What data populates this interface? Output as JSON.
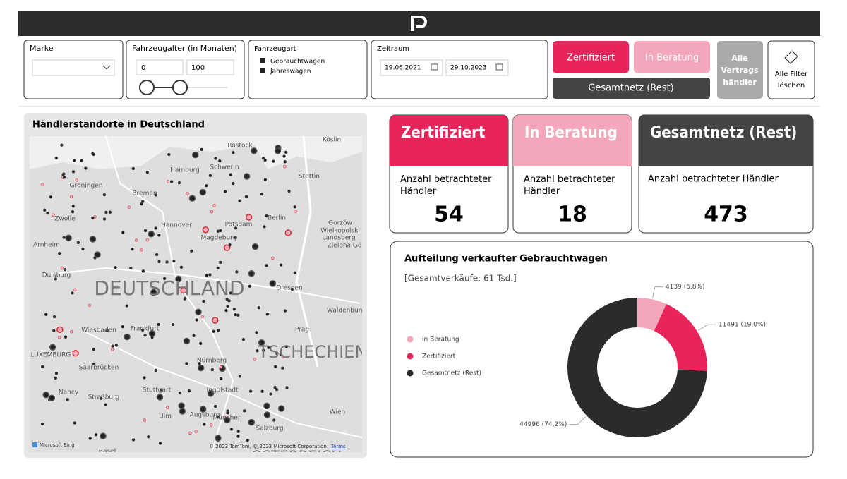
{
  "header": {
    "logo": "P"
  },
  "filters": {
    "brand": {
      "label": "Marke"
    },
    "age": {
      "label": "Fahrzeugalter (in Monaten)",
      "min": "0",
      "max": "100"
    },
    "type": {
      "label": "Fahrzeugart",
      "items": [
        "Gebrauchtwagen",
        "Jahreswagen"
      ]
    },
    "period": {
      "label": "Zeitraum",
      "from": "19.06.2021",
      "to": "29.10.2023"
    }
  },
  "buttons": {
    "certified": "Zertifiziert",
    "consulting": "In Beratung",
    "rest": "Gesamtnetz (Rest)",
    "all_dealers": [
      "Alle",
      "Vertrags",
      "händler"
    ],
    "clear": [
      "Alle Filter",
      "löschen"
    ]
  },
  "map": {
    "title": "Händlerstandorte in Deutschland",
    "places": [
      "Rostock",
      "Köslin",
      "Hamburg",
      "Schwerin",
      "Stettin",
      "Groningen",
      "Bremen",
      "Zwolle",
      "Hannover",
      "Magdeburg",
      "Berlin",
      "Potsdam",
      "Gorzów",
      "Wielkopolski",
      "Landsberg",
      "Zielona Gó",
      "Arnheim",
      "Duisburg",
      "Dresden",
      "Waldenburg",
      "Wiesbaden",
      "Frankfurt",
      "Prag",
      "LUXEMBURG",
      "Saarbrücken",
      "Nürnberg",
      "Nancy",
      "Stuttgart",
      "Ingolstadt",
      "Straßburg",
      "Augsburg",
      "Ulm",
      "München",
      "Wien",
      "Salzburg",
      "Basel"
    ],
    "countries": [
      "DEUTSCHLAND",
      "TSCHECHIEN",
      "ÖSTERREICH"
    ],
    "provider": "Microsoft Bing",
    "copyright": "© 2023 TomTom, © 2023 Microsoft Corporation",
    "terms": "Terms"
  },
  "kpis": [
    {
      "title": "Zertifiziert",
      "label": "Anzahl betrachteter Händler",
      "value": "54"
    },
    {
      "title": "In Beratung",
      "label": "Anzahl betrachteter Händler",
      "value": "18"
    },
    {
      "title": "Gesamtnetz (Rest)",
      "label": "Anzahl betrachteter Händler",
      "value": "473"
    }
  ],
  "chart_data": {
    "type": "donut",
    "title": "Aufteilung verkaufter Gebrauchtwagen",
    "subtitle": "[Gesamtverkäufe: 61 Tsd.]",
    "categories": [
      "in Beratung",
      "Zertifiziert",
      "Gesamtnetz (Rest)"
    ],
    "values": [
      4139,
      11491,
      44996
    ],
    "value_labels": [
      "4139 (6,8%)",
      "11491 (19,0%)",
      "44996 (74,2%)"
    ],
    "colors": [
      "#f4a6ba",
      "#e8255b",
      "#2b2b2b"
    ]
  }
}
